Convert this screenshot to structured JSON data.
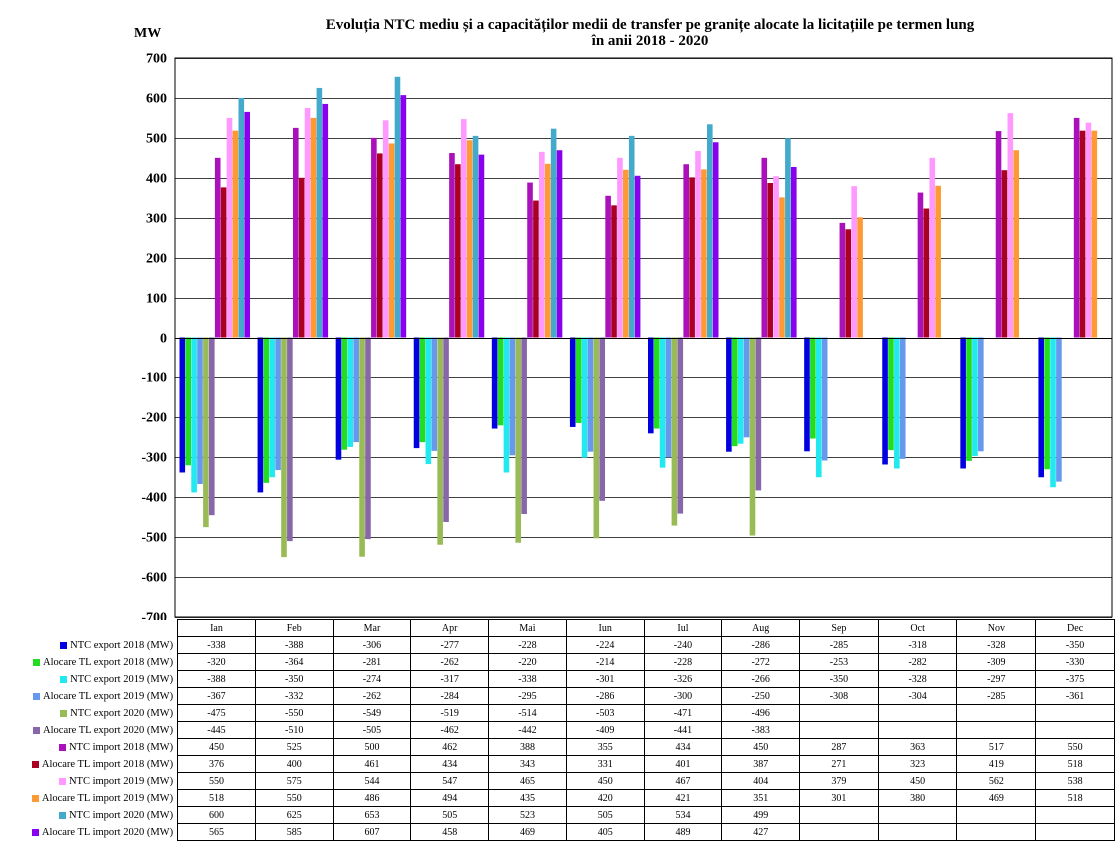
{
  "chart_data": {
    "type": "bar",
    "title_line1": "Evoluția NTC mediu și  a capacităților medii de transfer pe granițe alocate la licitațiile pe termen lung",
    "title_line2": "în anii 2018 - 2020",
    "ylabel": "MW",
    "ylim": [
      -700,
      700
    ],
    "yticks": [
      700,
      600,
      500,
      400,
      300,
      200,
      100,
      0,
      -100,
      -200,
      -300,
      -400,
      -500,
      -600,
      -700
    ],
    "grid": true,
    "legend_position": "left, in data table",
    "categories": [
      "Ian",
      "Feb",
      "Mar",
      "Apr",
      "Mai",
      "Iun",
      "Iul",
      "Aug",
      "Sep",
      "Oct",
      "Nov",
      "Dec"
    ],
    "series": [
      {
        "name": "NTC export 2018 (MW)",
        "color": "#0000e0",
        "values": [
          -338,
          -388,
          -306,
          -277,
          -228,
          -224,
          -240,
          -286,
          -285,
          -318,
          -328,
          -350
        ]
      },
      {
        "name": "Alocare TL export 2018 (MW)",
        "color": "#22dd22",
        "values": [
          -320,
          -364,
          -281,
          -262,
          -220,
          -214,
          -228,
          -272,
          -253,
          -282,
          -309,
          -330
        ]
      },
      {
        "name": "NTC export 2019 (MW)",
        "color": "#22e8f0",
        "values": [
          -388,
          -350,
          -274,
          -317,
          -338,
          -301,
          -326,
          -266,
          -350,
          -328,
          -297,
          -375
        ]
      },
      {
        "name": "Alocare TL export 2019 (MW)",
        "color": "#6699ee",
        "values": [
          -367,
          -332,
          -262,
          -284,
          -295,
          -286,
          -300,
          -250,
          -308,
          -304,
          -285,
          -361
        ]
      },
      {
        "name": "NTC export 2020 (MW)",
        "color": "#99bb55",
        "values": [
          -475,
          -550,
          -549,
          -519,
          -514,
          -503,
          -471,
          -496,
          null,
          null,
          null,
          null
        ]
      },
      {
        "name": "Alocare TL export 2020 (MW)",
        "color": "#8866aa",
        "values": [
          -445,
          -510,
          -505,
          -462,
          -442,
          -409,
          -441,
          -383,
          null,
          null,
          null,
          null
        ]
      },
      {
        "name": "NTC import 2018 (MW)",
        "color": "#aa11bb",
        "values": [
          450,
          525,
          500,
          462,
          388,
          355,
          434,
          450,
          287,
          363,
          517,
          550
        ]
      },
      {
        "name": "Alocare TL import 2018 (MW)",
        "color": "#aa0022",
        "values": [
          376,
          400,
          461,
          434,
          343,
          331,
          401,
          387,
          271,
          323,
          419,
          518
        ]
      },
      {
        "name": "NTC import 2019 (MW)",
        "color": "#ff99ff",
        "values": [
          550,
          575,
          544,
          547,
          465,
          450,
          467,
          404,
          379,
          450,
          562,
          538
        ]
      },
      {
        "name": "Alocare TL import 2019 (MW)",
        "color": "#ff9933",
        "values": [
          518,
          550,
          486,
          494,
          435,
          420,
          421,
          351,
          301,
          380,
          469,
          518
        ]
      },
      {
        "name": "NTC import 2020 (MW)",
        "color": "#44aacc",
        "values": [
          600,
          625,
          653,
          505,
          523,
          505,
          534,
          499,
          null,
          null,
          null,
          null
        ]
      },
      {
        "name": "Alocare TL import 2020 (MW)",
        "color": "#8800ee",
        "values": [
          565,
          585,
          607,
          458,
          469,
          405,
          489,
          427,
          null,
          null,
          null,
          null
        ]
      }
    ]
  }
}
